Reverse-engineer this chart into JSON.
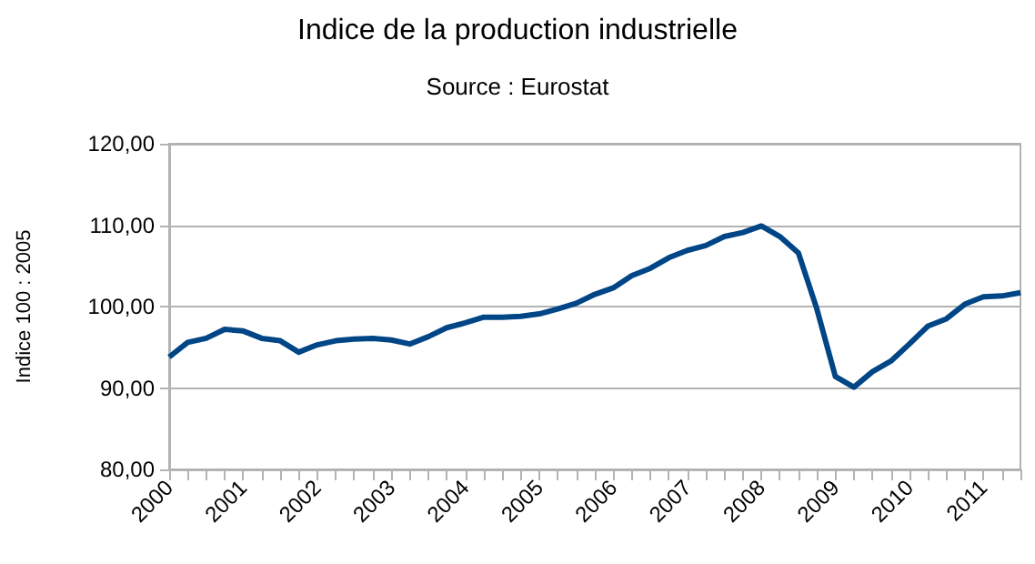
{
  "chart_data": {
    "type": "line",
    "title": "Indice de la production industrielle",
    "subtitle": "Source : Eurostat",
    "ylabel": "Indice 100 : 2005",
    "categories": [
      "2000",
      null,
      null,
      null,
      "2001",
      null,
      null,
      null,
      "2002",
      null,
      null,
      null,
      "2003",
      null,
      null,
      null,
      "2004",
      null,
      null,
      null,
      "2005",
      null,
      null,
      null,
      "2006",
      null,
      null,
      null,
      "2007",
      null,
      null,
      null,
      "2008",
      null,
      null,
      null,
      "2009",
      null,
      null,
      null,
      "2010",
      null,
      null,
      null,
      "2011",
      null,
      null
    ],
    "series": [
      {
        "color": "#004586",
        "values": [
          93.8,
          95.6,
          96.1,
          97.2,
          97.0,
          96.1,
          95.8,
          94.4,
          95.3,
          95.8,
          96.0,
          96.1,
          95.9,
          95.4,
          96.3,
          97.4,
          98.0,
          98.7,
          98.7,
          98.8,
          99.1,
          99.7,
          100.4,
          101.5,
          102.3,
          103.8,
          104.7,
          106.0,
          106.9,
          107.5,
          108.6,
          109.1,
          109.9,
          108.6,
          106.6,
          99.7,
          91.4,
          90.1,
          92.0,
          93.3,
          95.4,
          97.6,
          98.5,
          100.3,
          101.2,
          101.3,
          101.7
        ]
      }
    ],
    "ylim": [
      80,
      120
    ],
    "yticks": [
      {
        "value": 80,
        "label": "80,00"
      },
      {
        "value": 90,
        "label": "90,00"
      },
      {
        "value": 100,
        "label": "100,00"
      },
      {
        "value": 110,
        "label": "110,00"
      },
      {
        "value": 120,
        "label": "120,00"
      }
    ],
    "grid": "y",
    "marker": "none",
    "line_style": "solid"
  }
}
